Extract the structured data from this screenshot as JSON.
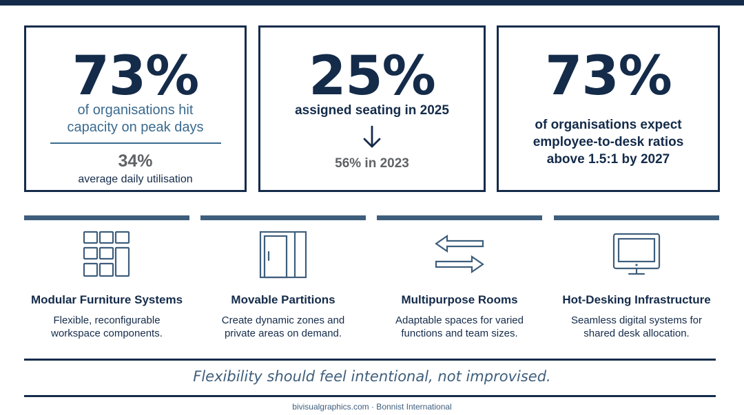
{
  "stats": [
    {
      "value": "73%",
      "description": "of organisations hit capacity on peak days",
      "secondary_value": "34%",
      "secondary_label": "average daily utilisation"
    },
    {
      "value": "25%",
      "description": "assigned seating in 2025",
      "comparison": "56% in 2023",
      "arrow_icon": "arrow-down-icon"
    },
    {
      "value": "73%",
      "description": "of organisations expect employee-to-desk ratios above 1.5:1 by 2027"
    }
  ],
  "features": [
    {
      "icon": "modular-grid-icon",
      "title": "Modular Furniture Systems",
      "description": "Flexible, reconfigurable workspace components."
    },
    {
      "icon": "sliding-partition-icon",
      "title": "Movable Partitions",
      "description": "Create dynamic zones and private areas on demand."
    },
    {
      "icon": "swap-arrows-icon",
      "title": "Multipurpose Rooms",
      "description": "Adaptable spaces for varied functions and team sizes."
    },
    {
      "icon": "monitor-icon",
      "title": "Hot-Desking Infrastructure",
      "description": "Seamless digital systems for shared desk allocation."
    }
  ],
  "quote": "Flexibility should feel intentional, not improvised.",
  "footer": "bivisualgraphics.com · Bonnist International",
  "colors": {
    "navy": "#142b4a",
    "steel_blue": "#3e5e7c",
    "accent_blue": "#3a6a8e",
    "gray": "#5f6266"
  }
}
